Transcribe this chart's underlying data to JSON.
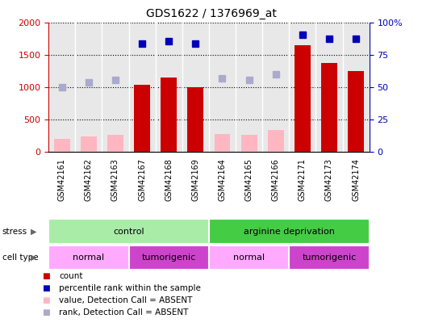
{
  "title": "GDS1622 / 1376969_at",
  "samples": [
    "GSM42161",
    "GSM42162",
    "GSM42163",
    "GSM42167",
    "GSM42168",
    "GSM42169",
    "GSM42164",
    "GSM42165",
    "GSM42166",
    "GSM42171",
    "GSM42173",
    "GSM42174"
  ],
  "count_values": [
    0,
    0,
    0,
    1040,
    1150,
    1005,
    0,
    0,
    0,
    1650,
    1380,
    1260
  ],
  "count_absent_values": [
    200,
    245,
    270,
    0,
    0,
    0,
    275,
    270,
    340,
    0,
    0,
    0
  ],
  "rank_present_values": [
    84,
    86,
    84,
    91,
    88,
    88
  ],
  "rank_absent_values": [
    50,
    54,
    56,
    57,
    56,
    60
  ],
  "rank_present_indices": [
    3,
    4,
    5,
    9,
    10,
    11
  ],
  "rank_absent_indices": [
    0,
    1,
    2,
    6,
    7,
    8
  ],
  "stress_groups": [
    {
      "label": "control",
      "start": 0,
      "end": 6,
      "color": "#A8ECA8"
    },
    {
      "label": "arginine deprivation",
      "start": 6,
      "end": 12,
      "color": "#44CC44"
    }
  ],
  "cell_type_groups": [
    {
      "label": "normal",
      "start": 0,
      "end": 3,
      "color": "#FFAAFF"
    },
    {
      "label": "tumorigenic",
      "start": 3,
      "end": 6,
      "color": "#CC44CC"
    },
    {
      "label": "normal",
      "start": 6,
      "end": 9,
      "color": "#FFAAFF"
    },
    {
      "label": "tumorigenic",
      "start": 9,
      "end": 12,
      "color": "#CC44CC"
    }
  ],
  "bar_color_present": "#CC0000",
  "bar_color_absent": "#FFB6C1",
  "rank_color_present": "#0000BB",
  "rank_color_absent": "#AAAACC",
  "ylim_left": [
    0,
    2000
  ],
  "ylim_right": [
    0,
    100
  ],
  "yticks_left": [
    0,
    500,
    1000,
    1500,
    2000
  ],
  "yticks_right": [
    0,
    25,
    50,
    75,
    100
  ],
  "left_axis_color": "#CC0000",
  "right_axis_color": "#0000BB",
  "plot_bg_color": "#E8E8E8",
  "legend_items": [
    {
      "label": "count",
      "color": "#CC0000"
    },
    {
      "label": "percentile rank within the sample",
      "color": "#0000BB"
    },
    {
      "label": "value, Detection Call = ABSENT",
      "color": "#FFB6C1"
    },
    {
      "label": "rank, Detection Call = ABSENT",
      "color": "#AAAACC"
    }
  ]
}
